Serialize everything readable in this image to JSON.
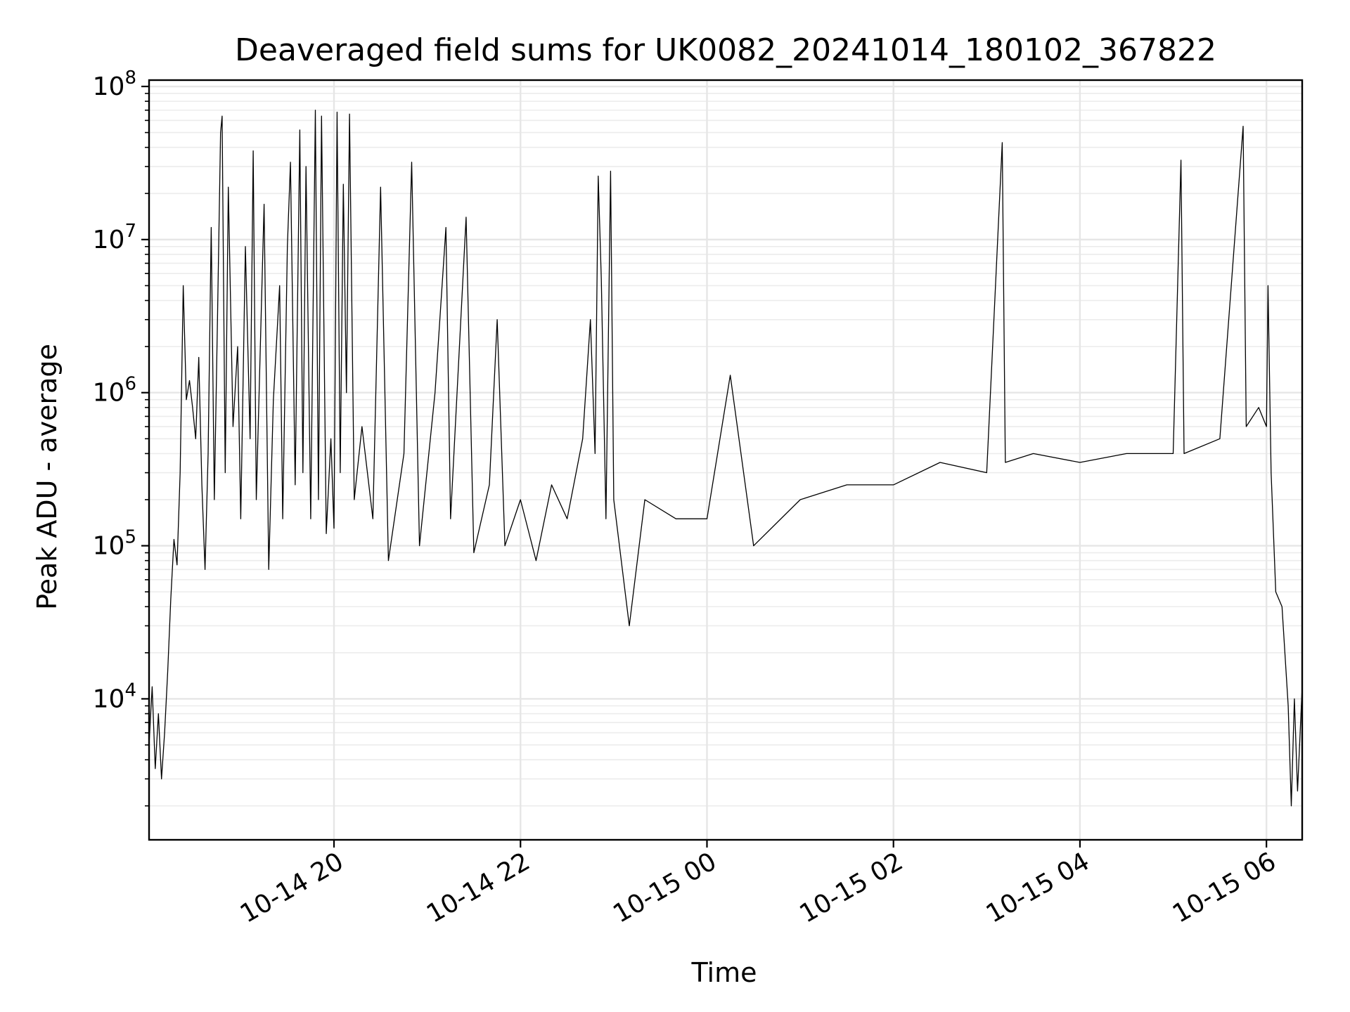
{
  "chart_data": {
    "type": "line",
    "title": "Deaveraged field sums for UK0082_20241014_180102_367822",
    "xlabel": "Time",
    "ylabel": "Peak ADU - average",
    "yscale": "log",
    "ylim": [
      1200,
      110000000
    ],
    "xlim": [
      "2024-10-14T18:01",
      "2024-10-15T06:23"
    ],
    "grid": true,
    "x_ticks": [
      {
        "value": "2024-10-14T20:00",
        "label": "10-14 20"
      },
      {
        "value": "2024-10-14T22:00",
        "label": "10-14 22"
      },
      {
        "value": "2024-10-15T00:00",
        "label": "10-15 00"
      },
      {
        "value": "2024-10-15T02:00",
        "label": "10-15 02"
      },
      {
        "value": "2024-10-15T04:00",
        "label": "10-15 04"
      },
      {
        "value": "2024-10-15T06:00",
        "label": "10-15 06"
      }
    ],
    "y_ticks": [
      {
        "value": 10000,
        "base": "10",
        "exp": "4"
      },
      {
        "value": 100000,
        "base": "10",
        "exp": "5"
      },
      {
        "value": 1000000,
        "base": "10",
        "exp": "6"
      },
      {
        "value": 10000000,
        "base": "10",
        "exp": "7"
      },
      {
        "value": 100000000,
        "base": "10",
        "exp": "8"
      }
    ],
    "series": [
      {
        "color": "#000000",
        "points": [
          [
            "2024-10-14T18:01",
            5000
          ],
          [
            "2024-10-14T18:03",
            12000
          ],
          [
            "2024-10-14T18:05",
            3500
          ],
          [
            "2024-10-14T18:07",
            8000
          ],
          [
            "2024-10-14T18:09",
            3000
          ],
          [
            "2024-10-14T18:11",
            6000
          ],
          [
            "2024-10-14T18:13",
            15000
          ],
          [
            "2024-10-14T18:15",
            45000
          ],
          [
            "2024-10-14T18:17",
            110000
          ],
          [
            "2024-10-14T18:19",
            75000
          ],
          [
            "2024-10-14T18:21",
            300000
          ],
          [
            "2024-10-14T18:23",
            5000000
          ],
          [
            "2024-10-14T18:25",
            900000
          ],
          [
            "2024-10-14T18:27",
            1200000
          ],
          [
            "2024-10-14T18:29",
            800000
          ],
          [
            "2024-10-14T18:31",
            500000
          ],
          [
            "2024-10-14T18:33",
            1700000
          ],
          [
            "2024-10-14T18:35",
            250000
          ],
          [
            "2024-10-14T18:37",
            70000
          ],
          [
            "2024-10-14T18:39",
            400000
          ],
          [
            "2024-10-14T18:41",
            12000000
          ],
          [
            "2024-10-14T18:43",
            200000
          ],
          [
            "2024-10-14T18:45",
            3000000
          ],
          [
            "2024-10-14T18:47",
            50000000
          ],
          [
            "2024-10-14T18:48",
            64000000
          ],
          [
            "2024-10-14T18:50",
            300000
          ],
          [
            "2024-10-14T18:52",
            22000000
          ],
          [
            "2024-10-14T18:55",
            600000
          ],
          [
            "2024-10-14T18:58",
            2000000
          ],
          [
            "2024-10-14T19:00",
            150000
          ],
          [
            "2024-10-14T19:03",
            9000000
          ],
          [
            "2024-10-14T19:06",
            500000
          ],
          [
            "2024-10-14T19:08",
            38000000
          ],
          [
            "2024-10-14T19:10",
            200000
          ],
          [
            "2024-10-14T19:15",
            17000000
          ],
          [
            "2024-10-14T19:18",
            70000
          ],
          [
            "2024-10-14T19:21",
            900000
          ],
          [
            "2024-10-14T19:25",
            5000000
          ],
          [
            "2024-10-14T19:27",
            150000
          ],
          [
            "2024-10-14T19:30",
            9000000
          ],
          [
            "2024-10-14T19:32",
            32000000
          ],
          [
            "2024-10-14T19:35",
            250000
          ],
          [
            "2024-10-14T19:38",
            52000000
          ],
          [
            "2024-10-14T19:40",
            300000
          ],
          [
            "2024-10-14T19:42",
            30000000
          ],
          [
            "2024-10-14T19:45",
            150000
          ],
          [
            "2024-10-14T19:48",
            70000000
          ],
          [
            "2024-10-14T19:50",
            200000
          ],
          [
            "2024-10-14T19:52",
            64000000
          ],
          [
            "2024-10-14T19:55",
            120000
          ],
          [
            "2024-10-14T19:58",
            500000
          ],
          [
            "2024-10-14T20:00",
            130000
          ],
          [
            "2024-10-14T20:02",
            68000000
          ],
          [
            "2024-10-14T20:04",
            300000
          ],
          [
            "2024-10-14T20:06",
            23000000
          ],
          [
            "2024-10-14T20:08",
            1000000
          ],
          [
            "2024-10-14T20:10",
            66000000
          ],
          [
            "2024-10-14T20:13",
            200000
          ],
          [
            "2024-10-14T20:18",
            600000
          ],
          [
            "2024-10-14T20:25",
            150000
          ],
          [
            "2024-10-14T20:30",
            22000000
          ],
          [
            "2024-10-14T20:35",
            80000
          ],
          [
            "2024-10-14T20:45",
            400000
          ],
          [
            "2024-10-14T20:50",
            32000000
          ],
          [
            "2024-10-14T20:55",
            100000
          ],
          [
            "2024-10-14T21:05",
            1000000
          ],
          [
            "2024-10-14T21:12",
            12000000
          ],
          [
            "2024-10-14T21:15",
            150000
          ],
          [
            "2024-10-14T21:25",
            14000000
          ],
          [
            "2024-10-14T21:30",
            90000
          ],
          [
            "2024-10-14T21:40",
            250000
          ],
          [
            "2024-10-14T21:45",
            3000000
          ],
          [
            "2024-10-14T21:50",
            100000
          ],
          [
            "2024-10-14T22:00",
            200000
          ],
          [
            "2024-10-14T22:10",
            80000
          ],
          [
            "2024-10-14T22:20",
            250000
          ],
          [
            "2024-10-14T22:30",
            150000
          ],
          [
            "2024-10-14T22:40",
            500000
          ],
          [
            "2024-10-14T22:45",
            3000000
          ],
          [
            "2024-10-14T22:48",
            400000
          ],
          [
            "2024-10-14T22:50",
            26000000
          ],
          [
            "2024-10-14T22:52",
            5500000
          ],
          [
            "2024-10-14T22:55",
            150000
          ],
          [
            "2024-10-14T22:58",
            28000000
          ],
          [
            "2024-10-14T23:00",
            200000
          ],
          [
            "2024-10-14T23:10",
            30000
          ],
          [
            "2024-10-14T23:20",
            200000
          ],
          [
            "2024-10-14T23:40",
            150000
          ],
          [
            "2024-10-15T00:00",
            150000
          ],
          [
            "2024-10-15T00:15",
            1300000
          ],
          [
            "2024-10-15T00:30",
            100000
          ],
          [
            "2024-10-15T01:00",
            200000
          ],
          [
            "2024-10-15T01:30",
            250000
          ],
          [
            "2024-10-15T02:00",
            250000
          ],
          [
            "2024-10-15T02:30",
            350000
          ],
          [
            "2024-10-15T03:00",
            300000
          ],
          [
            "2024-10-15T03:10",
            43000000
          ],
          [
            "2024-10-15T03:12",
            350000
          ],
          [
            "2024-10-15T03:30",
            400000
          ],
          [
            "2024-10-15T04:00",
            350000
          ],
          [
            "2024-10-15T04:30",
            400000
          ],
          [
            "2024-10-15T05:00",
            400000
          ],
          [
            "2024-10-15T05:05",
            33000000
          ],
          [
            "2024-10-15T05:07",
            400000
          ],
          [
            "2024-10-15T05:30",
            500000
          ],
          [
            "2024-10-15T05:45",
            55000000
          ],
          [
            "2024-10-15T05:47",
            600000
          ],
          [
            "2024-10-15T05:55",
            800000
          ],
          [
            "2024-10-15T06:00",
            600000
          ],
          [
            "2024-10-15T06:01",
            5000000
          ],
          [
            "2024-10-15T06:03",
            300000
          ],
          [
            "2024-10-15T06:06",
            50000
          ],
          [
            "2024-10-15T06:10",
            40000
          ],
          [
            "2024-10-15T06:14",
            9000
          ],
          [
            "2024-10-15T06:16",
            2000
          ],
          [
            "2024-10-15T06:18",
            10000
          ],
          [
            "2024-10-15T06:20",
            2500
          ],
          [
            "2024-10-15T06:23",
            12000
          ]
        ]
      }
    ]
  }
}
